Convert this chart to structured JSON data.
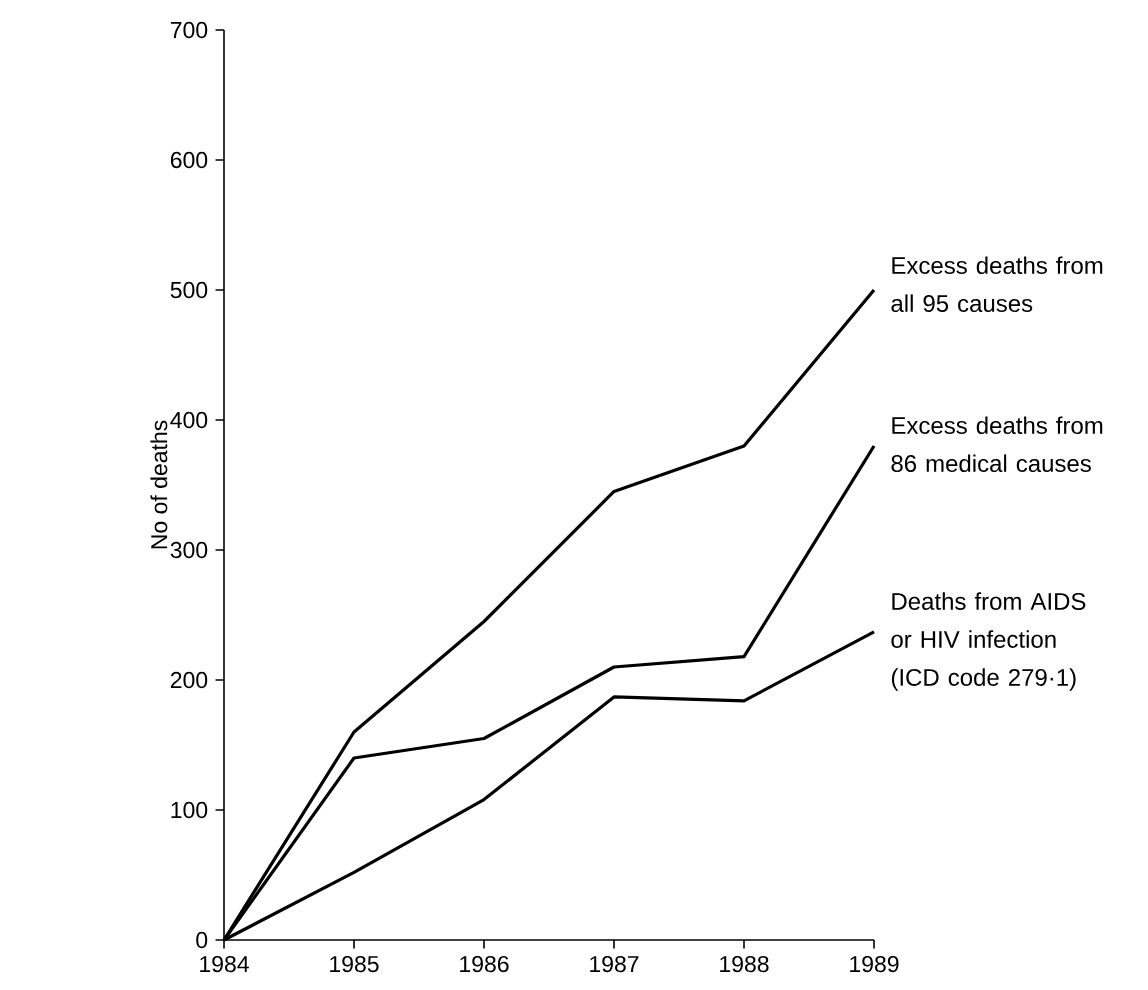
{
  "chart_data": {
    "type": "line",
    "ylabel": "No of deaths",
    "x": [
      1984,
      1985,
      1986,
      1987,
      1988,
      1989
    ],
    "xlim": [
      1984,
      1989
    ],
    "xticks": [
      1984,
      1985,
      1986,
      1987,
      1988,
      1989
    ],
    "ylim": [
      0,
      700
    ],
    "yticks": [
      0,
      100,
      200,
      300,
      400,
      500,
      600,
      700
    ],
    "series": [
      {
        "name": "Excess deaths from all 95 causes",
        "color": "#000000",
        "values": [
          0,
          160,
          245,
          345,
          380,
          500
        ]
      },
      {
        "name": "Excess deaths from 86 medical causes",
        "color": "#000000",
        "values": [
          0,
          140,
          155,
          210,
          218,
          380
        ]
      },
      {
        "name": "Deaths from AIDS or HIV infection (ICD code 279·1)",
        "color": "#000000",
        "values": [
          0,
          52,
          108,
          187,
          184,
          237
        ]
      }
    ],
    "grid": false,
    "legend": false,
    "marker": "none",
    "line_style": "solid"
  }
}
